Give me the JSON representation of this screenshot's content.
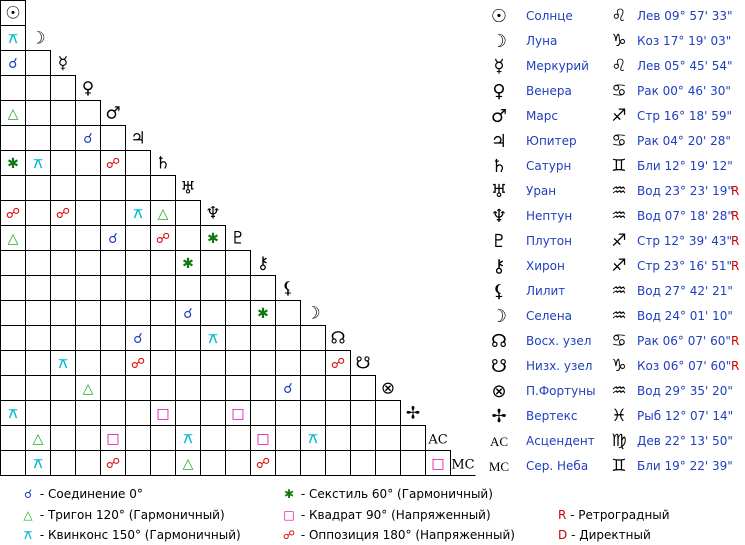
{
  "planets": [
    {
      "glyph": "☉",
      "name": "Солнце",
      "zodiac_glyph": "♌",
      "position": "Лев 09° 57' 33\"",
      "retro": ""
    },
    {
      "glyph": "☽",
      "name": "Луна",
      "zodiac_glyph": "♑",
      "position": "Коз 17° 19' 03\"",
      "retro": ""
    },
    {
      "glyph": "☿",
      "name": "Меркурий",
      "zodiac_glyph": "♌",
      "position": "Лев 05° 45' 54\"",
      "retro": ""
    },
    {
      "glyph": "♀",
      "name": "Венера",
      "zodiac_glyph": "♋",
      "position": "Рак 00° 46' 30\"",
      "retro": ""
    },
    {
      "glyph": "♂",
      "name": "Марс",
      "zodiac_glyph": "♐",
      "position": "Стр 16° 18' 59\"",
      "retro": ""
    },
    {
      "glyph": "♃",
      "name": "Юпитер",
      "zodiac_glyph": "♋",
      "position": "Рак 04° 20' 28\"",
      "retro": ""
    },
    {
      "glyph": "♄",
      "name": "Сатурн",
      "zodiac_glyph": "♊",
      "position": "Бли 12° 19' 12\"",
      "retro": ""
    },
    {
      "glyph": "♅",
      "name": "Уран",
      "zodiac_glyph": "♒",
      "position": "Вод 23° 23' 19\"",
      "retro": "R"
    },
    {
      "glyph": "♆",
      "name": "Нептун",
      "zodiac_glyph": "♒",
      "position": "Вод 07° 18' 28\"",
      "retro": "R"
    },
    {
      "glyph": "♇",
      "name": "Плутон",
      "zodiac_glyph": "♐",
      "position": "Стр 12° 39' 43\"",
      "retro": "R"
    },
    {
      "glyph": "⚷",
      "name": "Хирон",
      "zodiac_glyph": "♐",
      "position": "Стр 23° 16' 51\"",
      "retro": "R"
    },
    {
      "glyph": "⚸",
      "name": "Лилит",
      "zodiac_glyph": "♒",
      "position": "Вод 27° 42' 21\"",
      "retro": ""
    },
    {
      "glyph": "☽",
      "name": "Селена",
      "zodiac_glyph": "♒",
      "position": "Вод 24° 01' 10\"",
      "retro": ""
    },
    {
      "glyph": "☊",
      "name": "Восх. узел",
      "zodiac_glyph": "♋",
      "position": "Рак 06° 07' 60\"",
      "retro": "R"
    },
    {
      "glyph": "☋",
      "name": "Низх. узел",
      "zodiac_glyph": "♑",
      "position": "Коз 06° 07' 60\"",
      "retro": "R"
    },
    {
      "glyph": "⊗",
      "name": "П.Фортуны",
      "zodiac_glyph": "♒",
      "position": "Вод 29° 35' 20\"",
      "retro": ""
    },
    {
      "glyph": "✢",
      "name": "Вертекс",
      "zodiac_glyph": "♓",
      "position": "Рыб 12° 07' 14\"",
      "retro": ""
    },
    {
      "glyph": "AC",
      "name": "Асцендент",
      "zodiac_glyph": "♍",
      "position": "Дев 22° 13' 50\"",
      "retro": ""
    },
    {
      "glyph": "MC",
      "name": "Сер. Неба",
      "zodiac_glyph": "♊",
      "position": "Бли 19° 22' 39\"",
      "retro": ""
    }
  ],
  "aspect_types": {
    "conj": {
      "glyph": "☌",
      "color": "#1f3fbf",
      "label": "- Соединение 0°"
    },
    "trine": {
      "glyph": "△",
      "color": "#22aa22",
      "label": "- Тригон 120° (Гармоничный)"
    },
    "quinc": {
      "glyph": "⚻",
      "color": "#00bbcc",
      "label": "- Квинконс 150° (Гармоничный)"
    },
    "sext": {
      "glyph": "✱",
      "color": "#117711",
      "label": "- Секстиль 60° (Гармоничный)"
    },
    "square": {
      "glyph": "□",
      "color": "#dd00aa",
      "label": "- Квадрат 90° (Напряженный)"
    },
    "opp": {
      "glyph": "☍",
      "color": "#dd0000",
      "label": "- Оппозиция 180° (Напряженный)"
    }
  },
  "aspects": [
    {
      "row": 1,
      "col": 0,
      "type": "quinc"
    },
    {
      "row": 2,
      "col": 0,
      "type": "conj"
    },
    {
      "row": 4,
      "col": 0,
      "type": "trine"
    },
    {
      "row": 5,
      "col": 3,
      "type": "conj"
    },
    {
      "row": 6,
      "col": 0,
      "type": "sext"
    },
    {
      "row": 6,
      "col": 1,
      "type": "quinc"
    },
    {
      "row": 6,
      "col": 4,
      "type": "opp"
    },
    {
      "row": 8,
      "col": 0,
      "type": "opp"
    },
    {
      "row": 8,
      "col": 2,
      "type": "opp"
    },
    {
      "row": 8,
      "col": 5,
      "type": "quinc"
    },
    {
      "row": 8,
      "col": 6,
      "type": "trine"
    },
    {
      "row": 9,
      "col": 0,
      "type": "trine"
    },
    {
      "row": 9,
      "col": 4,
      "type": "conj"
    },
    {
      "row": 9,
      "col": 6,
      "type": "opp"
    },
    {
      "row": 9,
      "col": 8,
      "type": "sext"
    },
    {
      "row": 10,
      "col": 7,
      "type": "sext"
    },
    {
      "row": 12,
      "col": 7,
      "type": "conj"
    },
    {
      "row": 12,
      "col": 10,
      "type": "sext"
    },
    {
      "row": 13,
      "col": 5,
      "type": "conj"
    },
    {
      "row": 13,
      "col": 8,
      "type": "quinc"
    },
    {
      "row": 14,
      "col": 2,
      "type": "quinc"
    },
    {
      "row": 14,
      "col": 5,
      "type": "opp"
    },
    {
      "row": 14,
      "col": 13,
      "type": "opp"
    },
    {
      "row": 15,
      "col": 3,
      "type": "trine"
    },
    {
      "row": 15,
      "col": 11,
      "type": "conj"
    },
    {
      "row": 16,
      "col": 0,
      "type": "quinc"
    },
    {
      "row": 16,
      "col": 6,
      "type": "square"
    },
    {
      "row": 16,
      "col": 9,
      "type": "square"
    },
    {
      "row": 17,
      "col": 1,
      "type": "trine"
    },
    {
      "row": 17,
      "col": 4,
      "type": "square"
    },
    {
      "row": 17,
      "col": 7,
      "type": "quinc"
    },
    {
      "row": 17,
      "col": 10,
      "type": "square"
    },
    {
      "row": 17,
      "col": 12,
      "type": "quinc"
    },
    {
      "row": 18,
      "col": 1,
      "type": "quinc"
    },
    {
      "row": 18,
      "col": 4,
      "type": "opp"
    },
    {
      "row": 18,
      "col": 7,
      "type": "trine"
    },
    {
      "row": 18,
      "col": 10,
      "type": "opp"
    },
    {
      "row": 18,
      "col": 17,
      "type": "square"
    }
  ],
  "legend": {
    "retro_letter": "R",
    "retro_label": " - Ретроградный",
    "direct_letter": "D",
    "direct_label": " - Директный"
  }
}
